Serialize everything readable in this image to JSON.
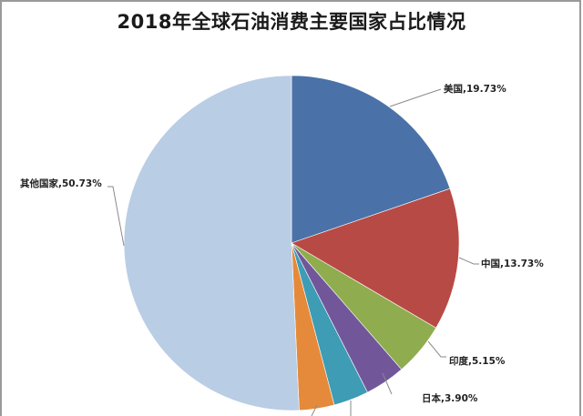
{
  "chart_data": {
    "type": "pie",
    "title": "2018年全球石油消费主要国家占比情况",
    "start_angle": "12 o'clock, clockwise",
    "slices": [
      {
        "label": "美国",
        "value": 19.73,
        "display": "美国,19.73%",
        "color": "#4a72a8"
      },
      {
        "label": "中国",
        "value": 13.73,
        "display": "中国,13.73%",
        "color": "#b84a45"
      },
      {
        "label": "印度",
        "value": 5.15,
        "display": "印度,5.15%",
        "color": "#8fad4f"
      },
      {
        "label": "日本",
        "value": 3.9,
        "display": "日本,3.90%",
        "color": "#71579a"
      },
      {
        "label": "",
        "value": 3.38,
        "display": "",
        "color": "#3e9cb5"
      },
      {
        "label": "",
        "value": 3.38,
        "display": "",
        "color": "#e58a3a"
      },
      {
        "label": "其他国家",
        "value": 50.73,
        "display": "其他国家,50.73%",
        "color": "#b9cde5"
      }
    ],
    "legend": "none (data labels with leader lines)"
  },
  "labels": {
    "us": "美国,19.73%",
    "cn": "中国,13.73%",
    "in": "印度,5.15%",
    "jp": "日本,3.90%",
    "other": "其他国家,50.73%"
  }
}
